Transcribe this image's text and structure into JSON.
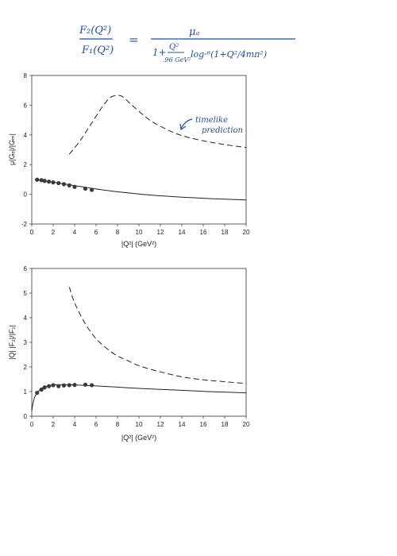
{
  "formula": {
    "lhs_num": "F₂(Q²)",
    "lhs_den": "F₁(Q²)",
    "equals": "=",
    "rhs_num": "μₐ",
    "rhs_den_1": "1+",
    "rhs_den_q": "Q²",
    "rhs_den_q_den": ".96 GeV²",
    "rhs_den_rest": "log·⁶(1+Q²/4mπ²)"
  },
  "colors": {
    "ink": "#1f4fb3",
    "curve": "#222222",
    "point": "#3a3a3a"
  },
  "chart_data": [
    {
      "type": "line",
      "title": "",
      "xlabel": "|Q²| (GeV²)",
      "ylabel": "μ|Gₑ|/|Gₘ|",
      "xlim": [
        0,
        20
      ],
      "ylim": [
        -2,
        8
      ],
      "xticks": [
        0,
        2,
        4,
        6,
        8,
        10,
        12,
        14,
        16,
        18,
        20
      ],
      "yticks": [
        -2,
        0,
        2,
        4,
        6,
        8
      ],
      "annotation": {
        "text_1": "timelike",
        "text_2": "prediction"
      },
      "series": [
        {
          "style": "solid",
          "x": [
            0.3,
            0.5,
            1,
            2,
            3,
            4,
            5,
            6,
            8,
            10,
            12,
            14,
            16,
            18,
            20
          ],
          "y": [
            1.0,
            0.97,
            0.92,
            0.82,
            0.7,
            0.58,
            0.47,
            0.36,
            0.17,
            0.02,
            -0.1,
            -0.19,
            -0.27,
            -0.33,
            -0.38
          ]
        },
        {
          "style": "dashed",
          "x": [
            3.5,
            4.5,
            5.5,
            6.5,
            7.3,
            8,
            8.5,
            9.5,
            11,
            12.5,
            14,
            16,
            18,
            20
          ],
          "y": [
            2.7,
            3.6,
            4.7,
            5.8,
            6.5,
            6.65,
            6.55,
            5.9,
            5.0,
            4.4,
            3.95,
            3.6,
            3.35,
            3.15
          ]
        },
        {
          "style": "points",
          "x": [
            0.5,
            0.9,
            1.2,
            1.6,
            2.0,
            2.5,
            3.0,
            3.5,
            4.0,
            5.0,
            5.6
          ],
          "y": [
            0.98,
            0.95,
            0.9,
            0.85,
            0.8,
            0.75,
            0.68,
            0.6,
            0.5,
            0.38,
            0.3
          ]
        }
      ]
    },
    {
      "type": "line",
      "title": "",
      "xlabel": "|Q²| (GeV²)",
      "ylabel": "|Q| |F₂|/|F₁|",
      "xlim": [
        0,
        20
      ],
      "ylim": [
        0,
        6
      ],
      "xticks": [
        0,
        2,
        4,
        6,
        8,
        10,
        12,
        14,
        16,
        18,
        20
      ],
      "yticks": [
        0,
        1,
        2,
        3,
        4,
        5,
        6
      ],
      "series": [
        {
          "style": "solid",
          "x": [
            0,
            0.1,
            0.3,
            0.6,
            1,
            1.5,
            2,
            3,
            4,
            6,
            8,
            10,
            12,
            14,
            16,
            18,
            20
          ],
          "y": [
            0.2,
            0.5,
            0.8,
            1.0,
            1.15,
            1.23,
            1.27,
            1.28,
            1.27,
            1.23,
            1.18,
            1.13,
            1.09,
            1.05,
            1.01,
            0.98,
            0.95
          ]
        },
        {
          "style": "dashed",
          "x": [
            3.5,
            4,
            5,
            6,
            7,
            8,
            9,
            10,
            12,
            14,
            16,
            18,
            20
          ],
          "y": [
            5.25,
            4.6,
            3.75,
            3.15,
            2.75,
            2.45,
            2.25,
            2.05,
            1.8,
            1.6,
            1.48,
            1.4,
            1.33
          ]
        },
        {
          "style": "points",
          "x": [
            0.5,
            0.9,
            1.2,
            1.6,
            2.0,
            2.5,
            3.0,
            3.5,
            4.0,
            5.0,
            5.6
          ],
          "y": [
            0.95,
            1.08,
            1.17,
            1.22,
            1.26,
            1.22,
            1.25,
            1.26,
            1.27,
            1.28,
            1.26
          ]
        }
      ]
    }
  ]
}
